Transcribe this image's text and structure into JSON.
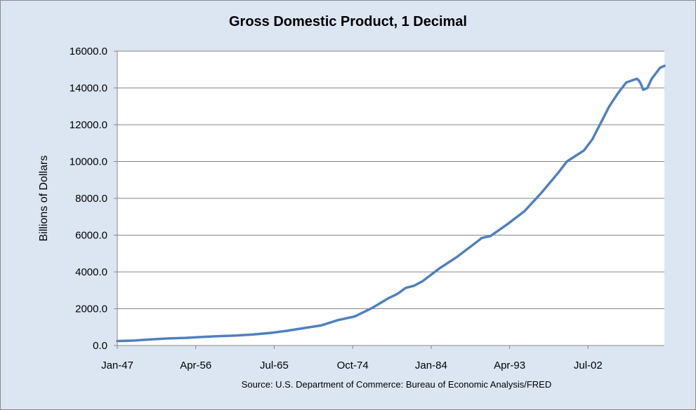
{
  "chart_data": {
    "type": "line",
    "title": "Gross Domestic Product, 1 Decimal",
    "ylabel": "Billions of Dollars",
    "xlabel": "",
    "source": "Source: U.S. Department of Commerce: Bureau of Economic Analysis/FRED",
    "ylim": [
      0,
      16000
    ],
    "y_ticks": [
      "0.0",
      "2000.0",
      "4000.0",
      "6000.0",
      "8000.0",
      "10000.0",
      "12000.0",
      "14000.0",
      "16000.0"
    ],
    "x_ticks": [
      "Jan-47",
      "Apr-56",
      "Jul-65",
      "Oct-74",
      "Jan-84",
      "Apr-93",
      "Jul-02"
    ],
    "x_range": [
      "Jan-47",
      "Jul-11"
    ],
    "grid": "horizontal",
    "legend": "none",
    "series": [
      {
        "color": "#4f81bd",
        "x": [
          "Jan-47",
          "Jan-49",
          "Jan-51",
          "Jan-53",
          "Jan-55",
          "Jan-57",
          "Jan-59",
          "Jan-61",
          "Jan-63",
          "Jan-65",
          "Jan-67",
          "Jan-69",
          "Jan-71",
          "Jan-73",
          "Jan-75",
          "Jan-77",
          "Jan-79",
          "Jan-80",
          "Jan-81",
          "Jan-82",
          "Jan-83",
          "Jan-85",
          "Jan-87",
          "Jan-89",
          "Jan-90",
          "Jan-91",
          "Jan-93",
          "Jan-95",
          "Jan-97",
          "Jan-99",
          "Jan-00",
          "Jan-01",
          "Jan-02",
          "Jan-03",
          "Jan-04",
          "Jan-05",
          "Jan-06",
          "Jan-07",
          "Apr-08",
          "Jul-08",
          "Oct-08",
          "Jan-09",
          "Jul-09",
          "Jan-10",
          "Jul-10",
          "Jan-11",
          "Jul-11"
        ],
        "values": [
          243,
          272,
          330,
          385,
          415,
          470,
          510,
          540,
          600,
          680,
          800,
          950,
          1090,
          1380,
          1580,
          2030,
          2580,
          2800,
          3130,
          3250,
          3500,
          4200,
          4800,
          5500,
          5850,
          5950,
          6600,
          7300,
          8300,
          9400,
          10000,
          10300,
          10600,
          11200,
          12100,
          13000,
          13700,
          14300,
          14500,
          14400,
          14200,
          13900,
          14000,
          14500,
          14800,
          15100,
          15200
        ]
      }
    ]
  }
}
